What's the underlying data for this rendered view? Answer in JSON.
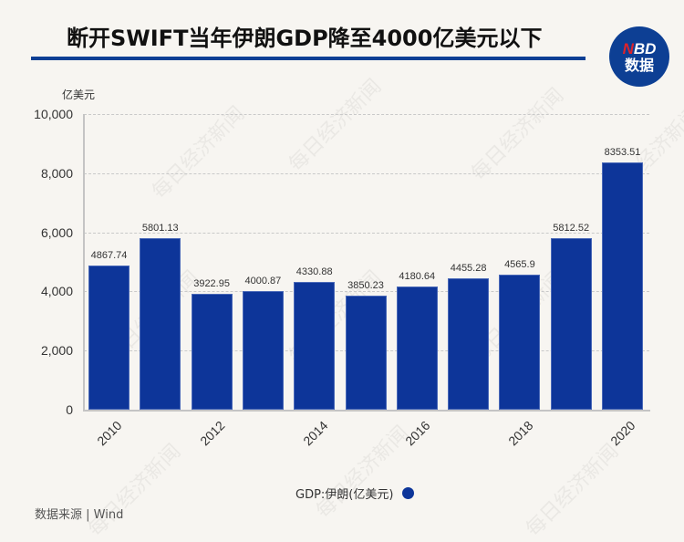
{
  "header": {
    "title": "断开SWIFT当年伊朗GDP降至4000亿美元以下",
    "logo_top_n": "N",
    "logo_top_rest": "BD",
    "logo_bottom": "数据"
  },
  "chart": {
    "unit_label": "亿美元",
    "y_ticks": [
      "10,000",
      "8,000",
      "6,000",
      "4,000",
      "2,000",
      "0"
    ],
    "x_ticks": [
      "2010",
      "2012",
      "2014",
      "2016",
      "2018",
      "2020"
    ],
    "bar_labels": [
      "4867.74",
      "5801.13",
      "3922.95",
      "4000.87",
      "4330.88",
      "3850.23",
      "4180.64",
      "4455.28",
      "4565.9",
      "5812.52",
      "8353.51"
    ],
    "legend_label": "GDP:伊朗(亿美元)",
    "source": "数据来源 | Wind",
    "watermark": "每日经济新闻",
    "bar_color": "#0d3599",
    "accent_color": "#0d3f94"
  },
  "chart_data": {
    "type": "bar",
    "title": "断开SWIFT当年伊朗GDP降至4000亿美元以下",
    "xlabel": "",
    "ylabel": "亿美元",
    "categories": [
      "2010",
      "2011",
      "2012",
      "2013",
      "2014",
      "2015",
      "2016",
      "2017",
      "2018",
      "2019",
      "2020"
    ],
    "series": [
      {
        "name": "GDP:伊朗(亿美元)",
        "values": [
          4867.74,
          5801.13,
          3922.95,
          4000.87,
          4330.88,
          3850.23,
          4180.64,
          4455.28,
          4565.9,
          5812.52,
          8353.51
        ]
      }
    ],
    "ylim": [
      0,
      10000
    ],
    "y_ticks": [
      0,
      2000,
      4000,
      6000,
      8000,
      10000
    ],
    "grid": true,
    "legend_position": "bottom",
    "source": "Wind"
  }
}
